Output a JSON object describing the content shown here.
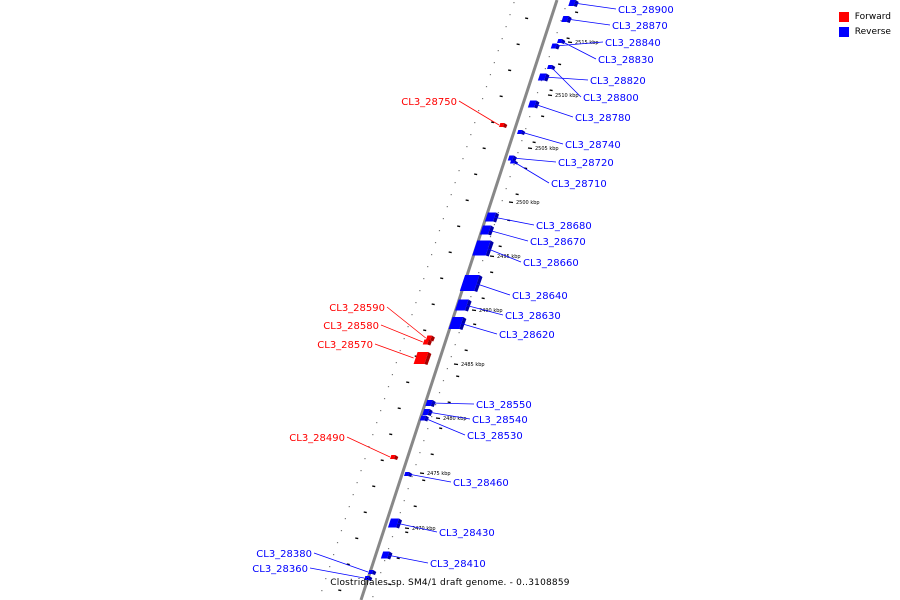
{
  "caption": "Clostridiales sp. SM4/1 draft genome. - 0..3108859",
  "legend": [
    {
      "label": "Forward",
      "color": "#ff0000"
    },
    {
      "label": "Reverse",
      "color": "#0000ff"
    }
  ],
  "colors": {
    "forward": "#ff0000",
    "reverse": "#0000ff",
    "axis": "#888888"
  },
  "scale_labels": [
    "2515 kbp",
    "2510 kbp",
    "2505 kbp",
    "2500 kbp",
    "2495 kbp",
    "2490 kbp",
    "2485 kbp",
    "2480 kbp",
    "2475 kbp",
    "2470 kbp"
  ],
  "genes": [
    {
      "id": "CL3_28900",
      "strand": "reverse"
    },
    {
      "id": "CL3_28870",
      "strand": "reverse"
    },
    {
      "id": "CL3_28840",
      "strand": "reverse"
    },
    {
      "id": "CL3_28830",
      "strand": "reverse"
    },
    {
      "id": "CL3_28820",
      "strand": "reverse"
    },
    {
      "id": "CL3_28800",
      "strand": "reverse"
    },
    {
      "id": "CL3_28780",
      "strand": "reverse"
    },
    {
      "id": "CL3_28750",
      "strand": "forward"
    },
    {
      "id": "CL3_28740",
      "strand": "reverse"
    },
    {
      "id": "CL3_28720",
      "strand": "reverse"
    },
    {
      "id": "CL3_28710",
      "strand": "reverse"
    },
    {
      "id": "CL3_28680",
      "strand": "reverse"
    },
    {
      "id": "CL3_28670",
      "strand": "reverse"
    },
    {
      "id": "CL3_28660",
      "strand": "reverse"
    },
    {
      "id": "CL3_28640",
      "strand": "reverse"
    },
    {
      "id": "CL3_28630",
      "strand": "reverse"
    },
    {
      "id": "CL3_28620",
      "strand": "reverse"
    },
    {
      "id": "CL3_28590",
      "strand": "forward"
    },
    {
      "id": "CL3_28580",
      "strand": "forward"
    },
    {
      "id": "CL3_28570",
      "strand": "forward"
    },
    {
      "id": "CL3_28550",
      "strand": "reverse"
    },
    {
      "id": "CL3_28540",
      "strand": "reverse"
    },
    {
      "id": "CL3_28530",
      "strand": "reverse"
    },
    {
      "id": "CL3_28490",
      "strand": "forward"
    },
    {
      "id": "CL3_28460",
      "strand": "reverse"
    },
    {
      "id": "CL3_28430",
      "strand": "reverse"
    },
    {
      "id": "CL3_28410",
      "strand": "reverse"
    },
    {
      "id": "CL3_28380",
      "strand": "reverse"
    },
    {
      "id": "CL3_28360",
      "strand": "reverse"
    }
  ]
}
